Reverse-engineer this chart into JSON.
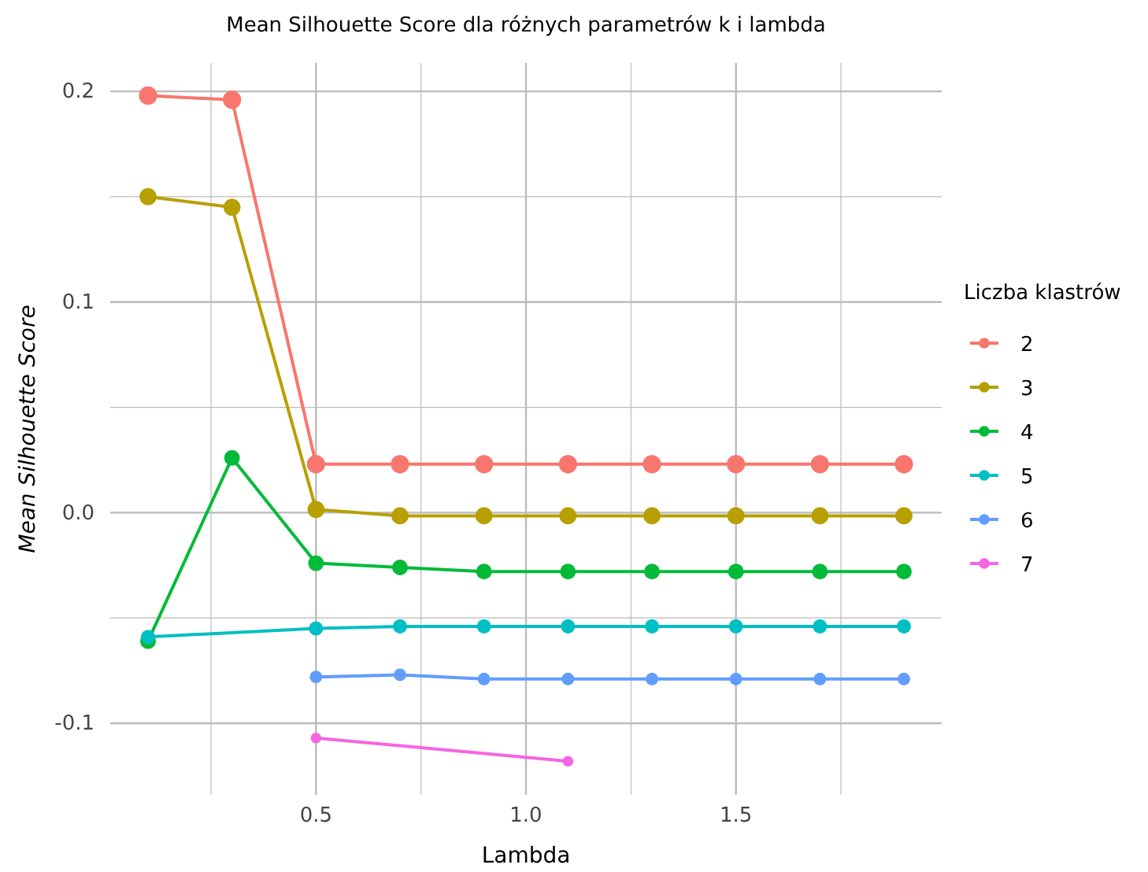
{
  "chart_data": {
    "type": "line",
    "title": "Mean Silhouette Score dla różnych parametrów k i lambda",
    "xlabel": "Lambda",
    "ylabel": "Mean Silhouette Score",
    "legend_title": "Liczba klastrów",
    "legend": "right",
    "grid": true,
    "marker": "circle",
    "line_style": "solid",
    "xlim": [
      0.01,
      1.99
    ],
    "xticks": [
      {
        "value": 0.25,
        "label": null
      },
      0.5,
      {
        "value": 0.75,
        "label": null
      },
      {
        "value": 1.0,
        "label": "1.0"
      },
      {
        "value": 1.25,
        "label": null
      },
      1.5,
      {
        "value": 1.75,
        "label": null
      }
    ],
    "ylim": [
      -0.134,
      0.2135
    ],
    "yticks": [
      {
        "value": -0.1,
        "label": "-0.1"
      },
      {
        "value": -0.05,
        "label": null
      },
      {
        "value": 0.0,
        "label": "0.0"
      },
      {
        "value": 0.05,
        "label": null
      },
      0.1,
      {
        "value": 0.15,
        "label": null
      },
      0.2
    ],
    "series": [
      {
        "name": "2",
        "color": "#f8766d",
        "x": [
          0.1,
          0.3,
          0.5,
          0.7,
          0.9,
          1.1,
          1.3,
          1.5,
          1.7,
          1.9
        ],
        "values": [
          0.198,
          0.196,
          0.023,
          0.023,
          0.023,
          0.023,
          0.023,
          0.023,
          0.023,
          0.023
        ]
      },
      {
        "name": "3",
        "color": "#b79f00",
        "x": [
          0.1,
          0.3,
          0.5,
          0.7,
          0.9,
          1.1,
          1.3,
          1.5,
          1.7,
          1.9
        ],
        "values": [
          0.15,
          0.145,
          0.0015,
          -0.0015,
          -0.0015,
          -0.0015,
          -0.0015,
          -0.0015,
          -0.0015,
          -0.0015
        ]
      },
      {
        "name": "4",
        "color": "#00ba38",
        "x": [
          0.1,
          0.3,
          0.5,
          0.7,
          0.9,
          1.1,
          1.3,
          1.5,
          1.7,
          1.9
        ],
        "values": [
          -0.061,
          0.026,
          -0.024,
          -0.026,
          -0.028,
          -0.028,
          -0.028,
          -0.028,
          -0.028,
          -0.028
        ]
      },
      {
        "name": "5",
        "color": "#00bfc4",
        "x": [
          0.1,
          0.5,
          0.7,
          0.9,
          1.1,
          1.3,
          1.5,
          1.7,
          1.9
        ],
        "values": [
          -0.059,
          -0.055,
          -0.054,
          -0.054,
          -0.054,
          -0.054,
          -0.054,
          -0.054,
          -0.054
        ]
      },
      {
        "name": "6",
        "color": "#619cff",
        "x": [
          0.5,
          0.7,
          0.9,
          1.1,
          1.3,
          1.5,
          1.7,
          1.9
        ],
        "values": [
          -0.078,
          -0.077,
          -0.079,
          -0.079,
          -0.079,
          -0.079,
          -0.079,
          -0.079
        ]
      },
      {
        "name": "7",
        "color": "#f564e3",
        "x": [
          0.5,
          1.1
        ],
        "values": [
          -0.107,
          -0.118
        ]
      }
    ]
  }
}
